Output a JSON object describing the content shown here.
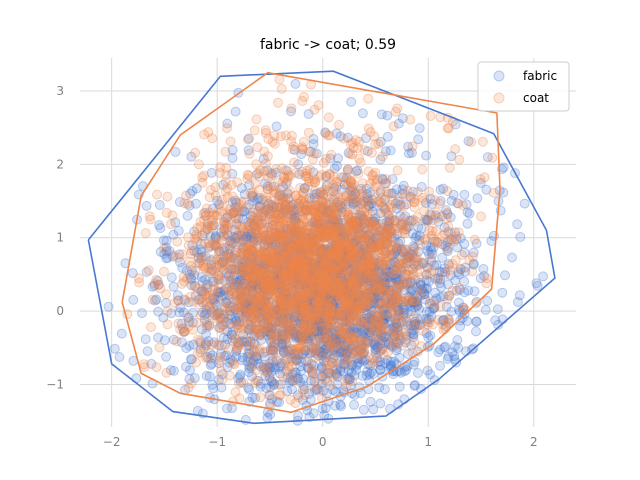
{
  "chart_data": {
    "type": "scatter",
    "title": "fabric -> coat; 0.59",
    "xlabel": "",
    "ylabel": "",
    "xlim": [
      -2.3,
      2.4
    ],
    "ylim": [
      -1.58,
      3.45
    ],
    "x_ticks": [
      -2,
      -1,
      0,
      1,
      2
    ],
    "y_ticks": [
      -1,
      0,
      1,
      2,
      3
    ],
    "x_tick_labels": [
      "−2",
      "−1",
      "0",
      "1",
      "2"
    ],
    "y_tick_labels": [
      "−1",
      "0",
      "1",
      "2",
      "3"
    ],
    "grid": true,
    "legend": {
      "position": "top-right",
      "entries": [
        "fabric",
        "coat"
      ]
    },
    "series": [
      {
        "name": "fabric",
        "color": "#4878d0",
        "marker": "circle",
        "distribution": {
          "n_points": 2500,
          "center": [
            0.0,
            0.25
          ],
          "std": [
            0.65,
            0.75
          ],
          "x_range": [
            -2.25,
            2.2
          ],
          "y_range": [
            -1.55,
            3.3
          ]
        },
        "hull": [
          [
            -2.22,
            0.97
          ],
          [
            -0.97,
            3.2
          ],
          [
            0.1,
            3.27
          ],
          [
            1.62,
            2.42
          ],
          [
            2.12,
            1.1
          ],
          [
            2.2,
            0.45
          ],
          [
            1.1,
            -0.93
          ],
          [
            0.6,
            -1.43
          ],
          [
            -0.65,
            -1.53
          ],
          [
            -1.42,
            -1.37
          ],
          [
            -2.0,
            -0.72
          ],
          [
            -2.22,
            0.97
          ]
        ]
      },
      {
        "name": "coat",
        "color": "#ee854a",
        "marker": "circle",
        "distribution": {
          "n_points": 2500,
          "center": [
            -0.1,
            0.6
          ],
          "std": [
            0.55,
            0.7
          ],
          "x_range": [
            -1.9,
            1.7
          ],
          "y_range": [
            -1.4,
            3.25
          ]
        },
        "hull": [
          [
            -1.9,
            0.12
          ],
          [
            -1.72,
            1.57
          ],
          [
            -1.35,
            2.4
          ],
          [
            -0.52,
            3.25
          ],
          [
            1.65,
            2.7
          ],
          [
            1.68,
            1.65
          ],
          [
            1.6,
            0.3
          ],
          [
            1.05,
            -0.45
          ],
          [
            0.42,
            -1.03
          ],
          [
            -0.3,
            -1.38
          ],
          [
            -1.35,
            -1.12
          ],
          [
            -1.72,
            -0.85
          ],
          [
            -1.9,
            0.12
          ]
        ]
      }
    ]
  }
}
